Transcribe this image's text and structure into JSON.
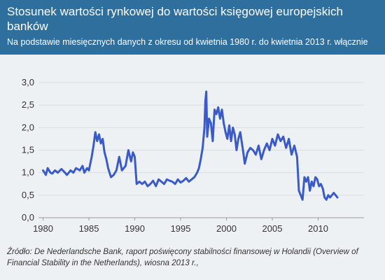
{
  "header": {
    "title": "Stosunek wartości rynkowej do wartości księgowej europejskich banków",
    "subtitle": "Na podstawie miesięcznych danych z okresu od kwietnia 1980 r. do kwietnia 2013 r. włącznie"
  },
  "source": "Źródło: De Nederlandsche Bank, raport poświęcony stabilności finansowej w Holandii (Overview of Financial Stability in the Netherlands), wiosna 2013 r.,",
  "colors": {
    "header_bg": "#2f6f9e",
    "line": "#3a5bc7",
    "plot_bg": "#eef1f4",
    "grid": "#d9dee3"
  },
  "chart_data": {
    "type": "line",
    "xlim": [
      1979.5,
      2015
    ],
    "ylim": [
      0,
      3.0
    ],
    "x_ticks": [
      1980,
      1985,
      1990,
      1995,
      2000,
      2005,
      2010
    ],
    "x_tick_labels": [
      "1980",
      "1985",
      "1990",
      "1995",
      "2000",
      "2005",
      "2010"
    ],
    "y_ticks": [
      0,
      0.5,
      1.0,
      1.5,
      2.0,
      2.5,
      3.0
    ],
    "y_tick_labels": [
      "0,0",
      "0,5",
      "1,0",
      "1,5",
      "2,0",
      "2,5",
      "3,0"
    ],
    "grid": "horizontal",
    "series": [
      {
        "x": [
          1980.0,
          1980.3,
          1980.5,
          1980.8,
          1981.0,
          1981.3,
          1981.6,
          1982.0,
          1982.3,
          1982.6,
          1983.0,
          1983.3,
          1983.6,
          1984.0,
          1984.3,
          1984.5,
          1984.8,
          1985.0,
          1985.3,
          1985.5,
          1985.7,
          1985.9,
          1986.1,
          1986.3,
          1986.5,
          1986.7,
          1986.9,
          1987.1,
          1987.4,
          1987.7,
          1988.0,
          1988.3,
          1988.6,
          1989.0,
          1989.3,
          1989.6,
          1989.8,
          1990.0,
          1990.2,
          1990.5,
          1990.8,
          1991.1,
          1991.4,
          1991.7,
          1992.0,
          1992.3,
          1992.6,
          1992.9,
          1993.2,
          1993.5,
          1993.8,
          1994.1,
          1994.4,
          1994.7,
          1995.0,
          1995.3,
          1995.6,
          1995.9,
          1996.2,
          1996.5,
          1996.8,
          1997.0,
          1997.2,
          1997.4,
          1997.6,
          1997.7,
          1997.8,
          1997.9,
          1998.1,
          1998.3,
          1998.5,
          1998.7,
          1998.9,
          1999.1,
          1999.3,
          1999.5,
          1999.7,
          1999.9,
          2000.1,
          2000.3,
          2000.5,
          2000.7,
          2000.9,
          2001.1,
          2001.3,
          2001.5,
          2001.8,
          2002.0,
          2002.3,
          2002.6,
          2002.9,
          2003.2,
          2003.5,
          2003.8,
          2004.1,
          2004.4,
          2004.7,
          2005.0,
          2005.3,
          2005.6,
          2005.9,
          2006.2,
          2006.5,
          2006.8,
          2007.1,
          2007.4,
          2007.7,
          2007.9,
          2008.1,
          2008.3,
          2008.5,
          2008.7,
          2008.9,
          2009.1,
          2009.3,
          2009.5,
          2009.7,
          2009.9,
          2010.1,
          2010.3,
          2010.5,
          2010.7,
          2010.9,
          2011.1,
          2011.3,
          2011.5,
          2011.7,
          2011.9,
          2012.1
        ],
        "y": [
          1.05,
          0.95,
          1.1,
          1.0,
          0.98,
          1.05,
          1.0,
          1.08,
          1.02,
          0.95,
          1.05,
          1.0,
          1.1,
          1.05,
          1.15,
          1.0,
          1.1,
          1.05,
          1.35,
          1.6,
          1.9,
          1.7,
          1.85,
          1.65,
          1.75,
          1.45,
          1.3,
          1.1,
          0.9,
          0.95,
          1.05,
          1.35,
          1.05,
          1.15,
          1.5,
          1.25,
          1.45,
          1.35,
          0.75,
          0.8,
          0.75,
          0.8,
          0.7,
          0.75,
          0.82,
          0.7,
          0.85,
          0.8,
          0.75,
          0.85,
          0.82,
          0.8,
          0.75,
          0.85,
          0.78,
          0.82,
          0.88,
          0.8,
          0.85,
          0.9,
          1.0,
          1.1,
          1.3,
          1.55,
          2.0,
          2.6,
          2.8,
          1.8,
          2.2,
          2.1,
          1.7,
          2.4,
          2.3,
          2.45,
          2.2,
          2.4,
          2.1,
          1.9,
          1.75,
          2.05,
          1.7,
          2.0,
          1.85,
          1.5,
          1.75,
          1.9,
          1.5,
          1.2,
          1.45,
          1.55,
          1.5,
          1.4,
          1.6,
          1.3,
          1.5,
          1.65,
          1.5,
          1.75,
          1.6,
          1.85,
          1.7,
          1.8,
          1.55,
          1.75,
          1.4,
          1.6,
          1.35,
          0.6,
          0.5,
          0.4,
          0.9,
          0.8,
          0.9,
          0.6,
          0.8,
          0.7,
          0.9,
          0.85,
          0.7,
          0.75,
          0.65,
          0.45,
          0.4,
          0.5,
          0.45,
          0.5,
          0.55,
          0.5,
          0.45
        ]
      }
    ]
  }
}
